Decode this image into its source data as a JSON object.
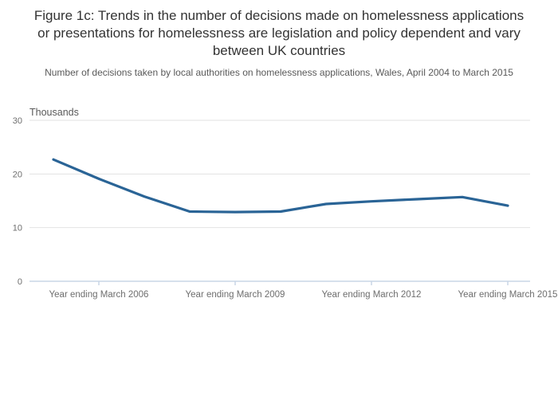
{
  "chart_data": {
    "type": "line",
    "title": "Figure 1c: Trends in the number of decisions made on homelessness applications or presentations for homelessness are legislation and policy dependent and vary between UK countries",
    "subtitle": "Number of decisions taken by local authorities on homelessness applications, Wales, April 2004 to March 2015",
    "ylabel": "Thousands",
    "x_meaning": "Year ending March",
    "x": [
      2005,
      2006,
      2007,
      2008,
      2009,
      2010,
      2011,
      2012,
      2013,
      2014,
      2015
    ],
    "values": [
      22.7,
      19.1,
      15.8,
      13.0,
      12.9,
      13.0,
      14.4,
      14.9,
      15.3,
      15.7,
      14.1
    ],
    "x_tick_years": [
      2006,
      2009,
      2012,
      2015
    ],
    "x_tick_labels": [
      "Year ending March 2006",
      "Year ending March 2009",
      "Year ending March 2012",
      "Year ending March 2015"
    ],
    "y_ticks": [
      0,
      10,
      20,
      30
    ],
    "ylim": [
      0,
      30
    ],
    "grid": "horizontal",
    "legend": "none",
    "colors": {
      "line": "#2a6496",
      "gridline": "#e2e2e2",
      "axis_line": "#c9d6e6",
      "title_text": "#333333",
      "subtitle_text": "#595959",
      "tick_text": "#6e6e6e",
      "ylabel_text": "#595959",
      "background": "#ffffff"
    }
  }
}
